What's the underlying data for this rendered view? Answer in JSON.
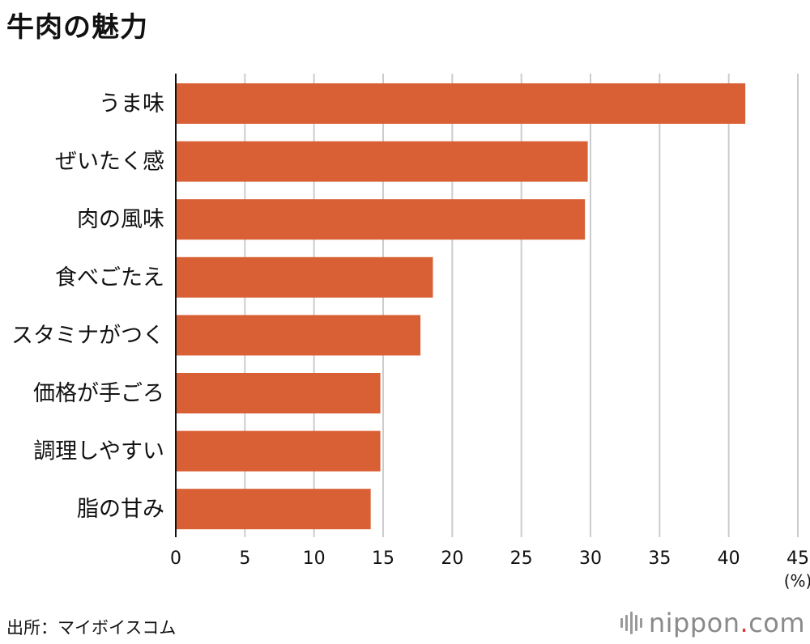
{
  "title": "牛肉の魅力",
  "source": "出所：マイボイスコム",
  "logo": {
    "name": "nippon",
    "dot": ".",
    "tld": "com",
    "mark_icon": "sound-wave-bars-icon"
  },
  "colors": {
    "bar": "#D95F34",
    "grid": "#CCCCCC",
    "axis": "#111111",
    "text": "#111111"
  },
  "chart_data": {
    "type": "bar",
    "orientation": "horizontal",
    "categories": [
      "うま味",
      "ぜいたく感",
      "肉の風味",
      "食べごたえ",
      "スタミナがつく",
      "価格が手ごろ",
      "調理しやすい",
      "脂の甘み"
    ],
    "values": [
      41.2,
      29.8,
      29.6,
      18.6,
      17.7,
      14.8,
      14.8,
      14.1
    ],
    "xlim": [
      0,
      45
    ],
    "xticks": [
      0,
      5,
      10,
      15,
      20,
      25,
      30,
      35,
      40,
      45
    ],
    "unit_label": "(%)",
    "grid": true
  }
}
